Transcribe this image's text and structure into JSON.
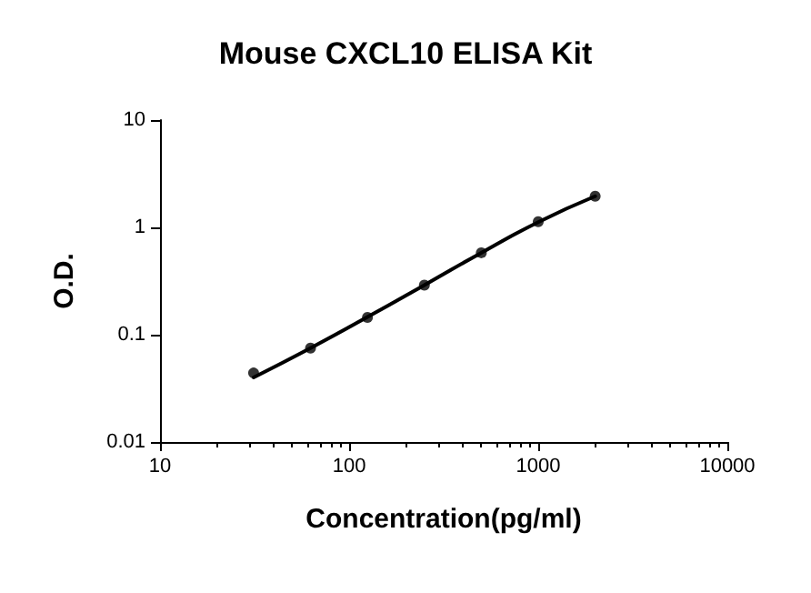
{
  "chart_data": {
    "type": "scatter",
    "title": "Mouse CXCL10 ELISA Kit",
    "xlabel": "Concentration(pg/ml)",
    "ylabel": "O.D.",
    "log": "xy",
    "xlim": [
      10,
      10000
    ],
    "xticks": [
      10,
      100,
      1000,
      10000
    ],
    "ylim": [
      0.01,
      10
    ],
    "yticks": [
      0.01,
      0.1,
      1,
      10
    ],
    "grid": false,
    "marker": "circle",
    "series": [
      {
        "color": "#000000",
        "x": [
          31.25,
          62.5,
          125,
          250,
          500,
          1000,
          2000
        ],
        "values": [
          0.044,
          0.075,
          0.145,
          0.29,
          0.58,
          1.13,
          1.95
        ]
      },
      {
        "type": "line",
        "color": "#000000",
        "line_style": "solid",
        "marker": "none",
        "x": [
          31.25,
          62.5,
          125,
          250,
          500,
          1000,
          2000
        ],
        "values": [
          0.04,
          0.075,
          0.146,
          0.29,
          0.58,
          1.12,
          1.95
        ]
      }
    ]
  }
}
